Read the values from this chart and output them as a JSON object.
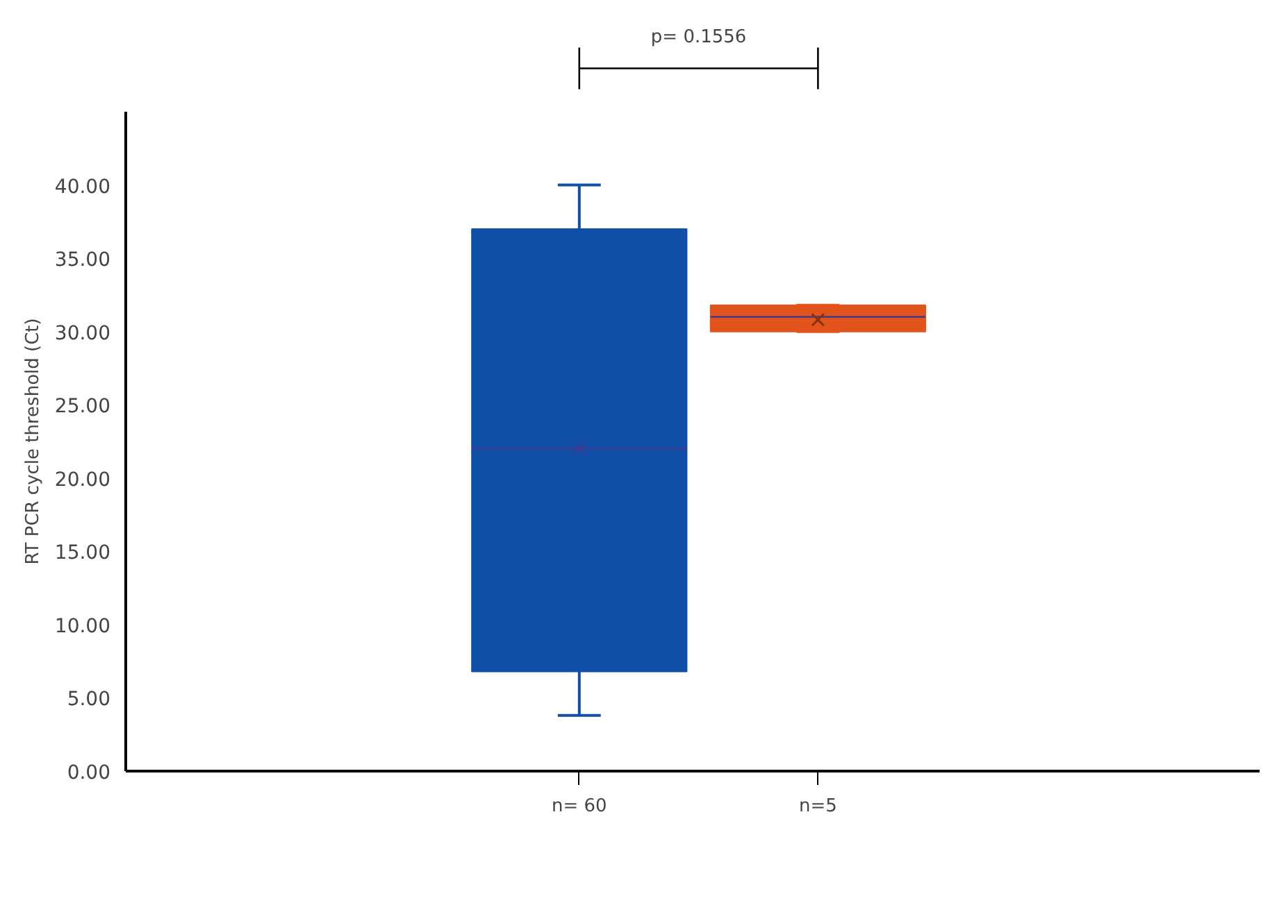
{
  "chart_data": {
    "type": "box",
    "ylabel": "RT PCR cycle threshold (Ct)",
    "categories": [
      "n= 60",
      "n=5"
    ],
    "colors": [
      "#0f4fa8",
      "#e2541c"
    ],
    "boxes": [
      {
        "low": 3.8,
        "q1": 6.8,
        "median": 22,
        "q3": 37,
        "high": 40,
        "mean": 22
      },
      {
        "low": 30,
        "q1": 30,
        "median": 31,
        "q3": 31.8,
        "high": 31.8,
        "mean": 30.8
      }
    ],
    "ylim": [
      0,
      45
    ],
    "yticks": [
      {
        "value": 0,
        "label": "0.00"
      },
      {
        "value": 5,
        "label": "5.00"
      },
      {
        "value": 10,
        "label": "10.00"
      },
      {
        "value": 15,
        "label": "15.00"
      },
      {
        "value": 20,
        "label": "20.00"
      },
      {
        "value": 25,
        "label": "25.00"
      },
      {
        "value": 30,
        "label": "30.00"
      },
      {
        "value": 35,
        "label": "35.00"
      },
      {
        "value": 40,
        "label": "40.00"
      }
    ],
    "annotations": [
      "p= 0.1556"
    ],
    "marker": "cross"
  }
}
